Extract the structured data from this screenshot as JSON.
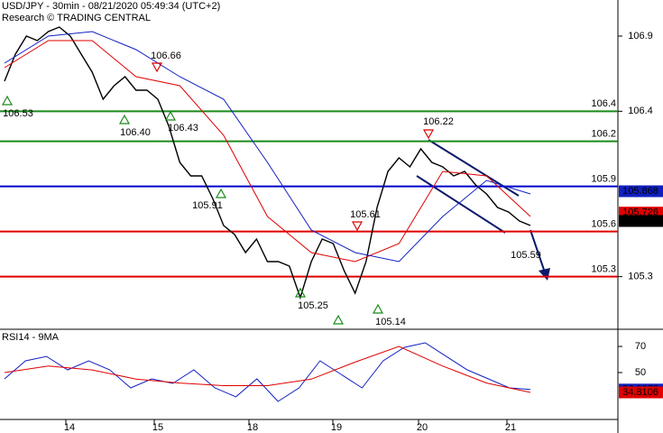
{
  "chart_data": [
    {
      "type": "line",
      "title": "USD/JPY - 30min - 08/21/2020 05:49:34 (UTC+2)",
      "subtitle": "Research © TRADING CENTRAL",
      "ylim": [
        104.98,
        107.14
      ],
      "yticks": [
        105.3,
        106.4,
        106.9
      ],
      "series": [
        {
          "color": "#000000",
          "values": [
            106.6,
            106.78,
            106.9,
            106.87,
            106.93,
            106.96,
            106.9,
            106.78,
            106.66,
            106.48,
            106.57,
            106.63,
            106.54,
            106.54,
            106.48,
            106.3,
            106.06,
            105.97,
            105.97,
            105.82,
            105.64,
            105.58,
            105.46,
            105.55,
            105.4,
            105.4,
            105.37,
            105.16,
            105.4,
            105.55,
            105.52,
            105.34,
            105.19,
            105.4,
            105.76,
            106.0,
            106.09,
            106.03,
            106.15,
            106.06,
            106.03,
            105.97,
            106.0,
            105.91,
            105.85,
            105.76,
            105.73,
            105.67,
            105.64
          ]
        },
        {
          "color": "#e00000",
          "values": [
            106.69,
            106.87,
            106.87,
            106.63,
            106.57,
            106.24,
            105.7,
            105.46,
            105.4,
            105.52,
            106.0,
            105.97,
            105.7
          ]
        },
        {
          "color": "#1020c0",
          "values": [
            106.72,
            106.9,
            106.93,
            106.81,
            106.63,
            106.48,
            106.06,
            105.61,
            105.46,
            105.4,
            105.7,
            105.94,
            105.85
          ]
        }
      ],
      "levels": [
        {
          "value": 106.4,
          "color": "#1a8a1a"
        },
        {
          "value": 106.2,
          "color": "#1a8a1a"
        },
        {
          "value": 105.9,
          "color": "#0000cc"
        },
        {
          "value": 105.6,
          "color": "#e00000"
        },
        {
          "value": 105.3,
          "color": "#e00000"
        }
      ],
      "last_labels": [
        {
          "value": 105.868,
          "color": "#1020c0"
        },
        {
          "value": 105.726,
          "color": "#e00000"
        },
        {
          "value": 105.67,
          "color": "#000000"
        }
      ],
      "annotations": [
        106.53,
        {
          "value": 106.4,
          "label": "106.40"
        },
        106.66,
        106.43,
        105.91,
        105.25,
        105.14,
        105.61,
        106.22,
        105.59
      ]
    },
    {
      "type": "line",
      "title": "RSI14 - 9MA",
      "ylim": [
        14.1,
        79.7
      ],
      "yticks": [
        50,
        70
      ],
      "series": [
        {
          "color": "#1020c0",
          "values": [
            45.2,
            59,
            62.4,
            52.1,
            59,
            52.1,
            38.3,
            45.2,
            41.7,
            52.1,
            38.3,
            31.4,
            45.2,
            27.9,
            38.3,
            59,
            48.6,
            38.3,
            59,
            69.3,
            72.8,
            62.4,
            52.1,
            45.2,
            38.3,
            37.0
          ]
        },
        {
          "color": "#e00000",
          "values": [
            50,
            55,
            52,
            45,
            42,
            40,
            40,
            45,
            58,
            70,
            55,
            42,
            34.8
          ]
        }
      ],
      "last_labels": [
        {
          "value": 36.9976,
          "color": "#1020c0"
        },
        {
          "value": 34.8106,
          "color": "#e00000"
        }
      ],
      "x_labels": [
        "14",
        "15",
        "18",
        "19",
        "20",
        "21"
      ]
    }
  ]
}
